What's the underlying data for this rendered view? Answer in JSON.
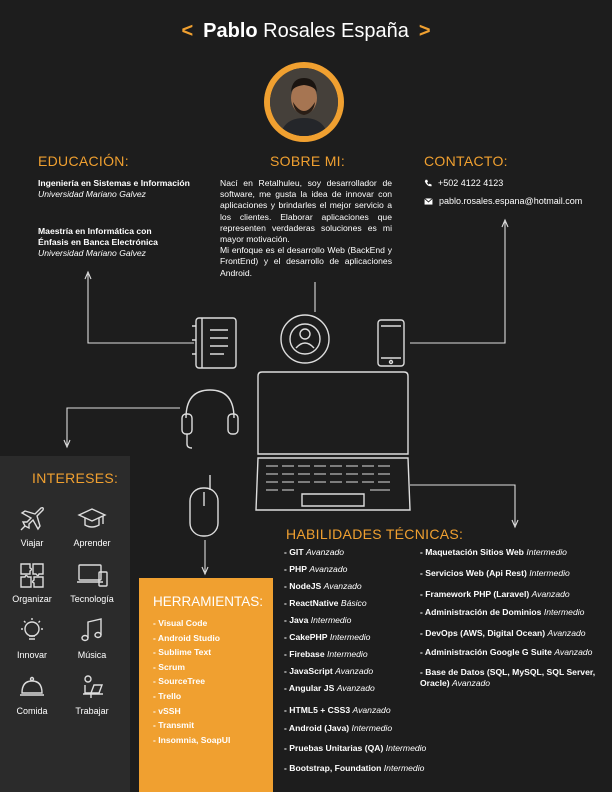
{
  "header": {
    "prefix": "<",
    "first": "Pablo",
    "rest": "Rosales España",
    "suffix": ">"
  },
  "education": {
    "title": "EDUCACIÓN:",
    "items": [
      {
        "degree": "Ingeniería en Sistemas e Información",
        "school": "Universidad Mariano Galvez"
      },
      {
        "degree": "Maestría en Informática con Énfasis en Banca Electrónica",
        "school": "Universidad Mariano Galvez"
      }
    ]
  },
  "about": {
    "title": "SOBRE MI:",
    "p1": "Nací en Retalhuleu, soy desarrollador de software, me gusta la idea de innovar con aplicaciones y brindarles el mejor servicio a los clientes. Elaborar aplicaciones que representen verdaderas soluciones es mi mayor motivación.",
    "p2": "Mi enfoque es el desarrollo Web (BackEnd y FrontEnd) y el desarrollo de aplicaciones Android."
  },
  "contact": {
    "title": "CONTACTO:",
    "phone": "+502 4122 4123",
    "email": "pablo.rosales.espana@hotmail.com"
  },
  "interests": {
    "title": "INTERESES:",
    "items": [
      {
        "label": "Viajar",
        "icon": "airplane-icon"
      },
      {
        "label": "Aprender",
        "icon": "graduation-cap-icon"
      },
      {
        "label": "Organizar",
        "icon": "puzzle-icon"
      },
      {
        "label": "Tecnología",
        "icon": "devices-icon"
      },
      {
        "label": "Innovar",
        "icon": "lightbulb-icon"
      },
      {
        "label": "Música",
        "icon": "music-note-icon"
      },
      {
        "label": "Comida",
        "icon": "cloche-icon"
      },
      {
        "label": "Trabajar",
        "icon": "person-laptop-icon"
      }
    ]
  },
  "tools": {
    "title": "HERRAMIENTAS:",
    "items": [
      "- Visual Code",
      "- Android Studio",
      "- Sublime Text",
      "- Scrum",
      "- SourceTree",
      "- Trello",
      "- vSSH",
      "- Transmit",
      "- Insomnia, SoapUI"
    ]
  },
  "skills": {
    "title": "HABILIDADES TÉCNICAS:",
    "left": [
      {
        "name": "- GIT",
        "level": "Avanzado"
      },
      {
        "name": "- PHP",
        "level": "Avanzado"
      },
      {
        "name": "- NodeJS",
        "level": "Avanzado"
      },
      {
        "name": "- ReactNative",
        "level": "Básico"
      },
      {
        "name": "- Java",
        "level": "Intermedio"
      },
      {
        "name": "- CakePHP",
        "level": "Intermedio"
      },
      {
        "name": "- Firebase",
        "level": "Intermedio"
      },
      {
        "name": "- JavaScript",
        "level": "Avanzado"
      },
      {
        "name": "- Angular JS",
        "level": "Avanzado"
      },
      {
        "name": "- HTML5 + CSS3",
        "level": "Avanzado"
      },
      {
        "name": "- Android (Java)",
        "level": "Intermedio"
      },
      {
        "name": "- Pruebas Unitarias (QA)",
        "level": "Intermedio"
      },
      {
        "name": "- Bootstrap, Foundation",
        "level": "Intermedio"
      }
    ],
    "right": [
      {
        "name": "- Maquetación Sitios Web",
        "level": "Intermedio"
      },
      {
        "name": "- Servicios Web (Api Rest)",
        "level": "Intermedio"
      },
      {
        "name": "- Framework PHP (Laravel)",
        "level": "Avanzado"
      },
      {
        "name": "- Administración de Dominios",
        "level": "Intermedio"
      },
      {
        "name": "- DevOps (AWS, Digital Ocean)",
        "level": "Avanzado"
      },
      {
        "name": "- Administración Google G Suite",
        "level": "Avanzado"
      },
      {
        "name": "- Base de Datos (SQL, MySQL, SQL Server, Oracle)",
        "level": "Avanzado"
      }
    ]
  },
  "colors": {
    "accent": "#f0a030",
    "background": "#1d1d1d",
    "panel": "#2b2b2b"
  }
}
